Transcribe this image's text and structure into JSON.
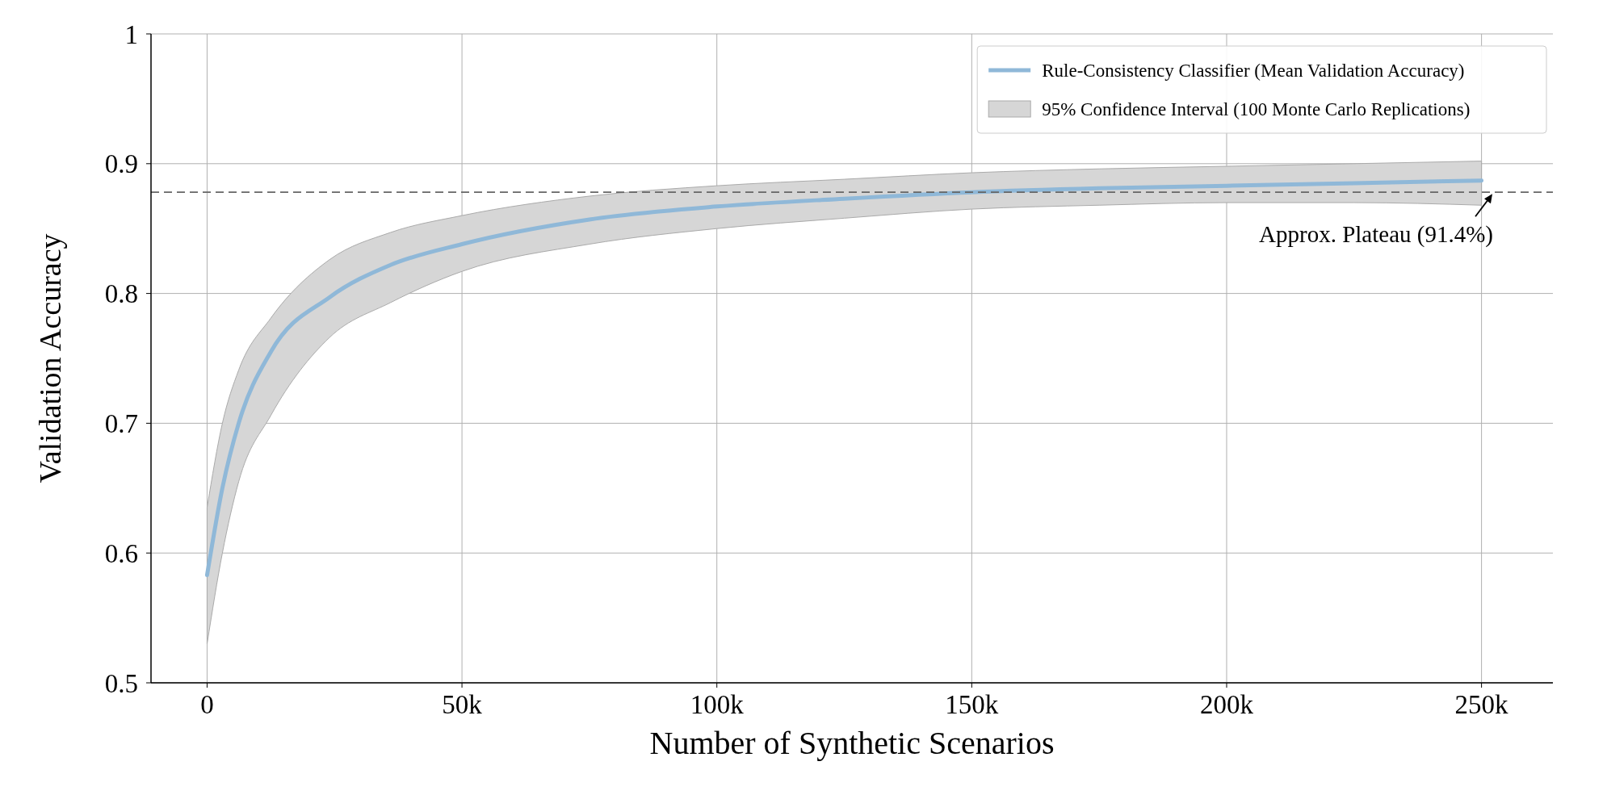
{
  "chart_data": {
    "type": "line",
    "xlabel": "Number of Synthetic Scenarios",
    "ylabel": "Validation Accuracy",
    "x": [
      0,
      3000,
      6200,
      12500,
      24000,
      36000,
      50000,
      75000,
      100000,
      125000,
      150000,
      175000,
      200000,
      225000,
      250000
    ],
    "series": [
      {
        "name": "Rule-Consistency Classifier (Mean Validation Accuracy)",
        "color": "#8fb8d8",
        "values": [
          0.583,
          0.65,
          0.7,
          0.755,
          0.797,
          0.822,
          0.838,
          0.857,
          0.867,
          0.873,
          0.878,
          0.881,
          0.883,
          0.885,
          0.887
        ]
      },
      {
        "name": "95% Confidence Interval (100 Monte Carlo Replications)",
        "type": "area",
        "color": "#d6d6d6",
        "values": [
          null,
          null,
          null,
          null,
          null,
          null,
          null,
          null,
          null,
          null,
          null,
          null,
          null,
          null,
          null
        ],
        "lower": [
          0.53,
          0.6,
          0.655,
          0.706,
          0.766,
          0.793,
          0.817,
          0.838,
          0.85,
          0.858,
          0.865,
          0.868,
          0.87,
          0.87,
          0.868
        ],
        "upper": [
          0.635,
          0.7,
          0.741,
          0.781,
          0.826,
          0.847,
          0.86,
          0.875,
          0.883,
          0.888,
          0.893,
          0.896,
          0.898,
          0.9,
          0.902
        ]
      }
    ],
    "xlim": [
      -11000,
      264000
    ],
    "ylim": [
      0.5,
      1.0
    ],
    "xticks": [
      0,
      {
        "value": 50000,
        "label": "50k"
      },
      {
        "value": 100000,
        "label": "100k"
      },
      {
        "value": 150000,
        "label": "150k"
      },
      {
        "value": 200000,
        "label": "200k"
      },
      {
        "value": 250000,
        "label": "250k"
      }
    ],
    "yticks": [
      0.5,
      0.6,
      0.7,
      0.8,
      0.9,
      1.0
    ],
    "ref_lines": [
      {
        "axis": "y",
        "value": 0.878,
        "color": "#666666",
        "line_style": "dashed",
        "label": "Approx. Plateau (91.4%)"
      }
    ],
    "grid": true,
    "legend": "top right",
    "marker": "none",
    "line_style": "solid"
  }
}
